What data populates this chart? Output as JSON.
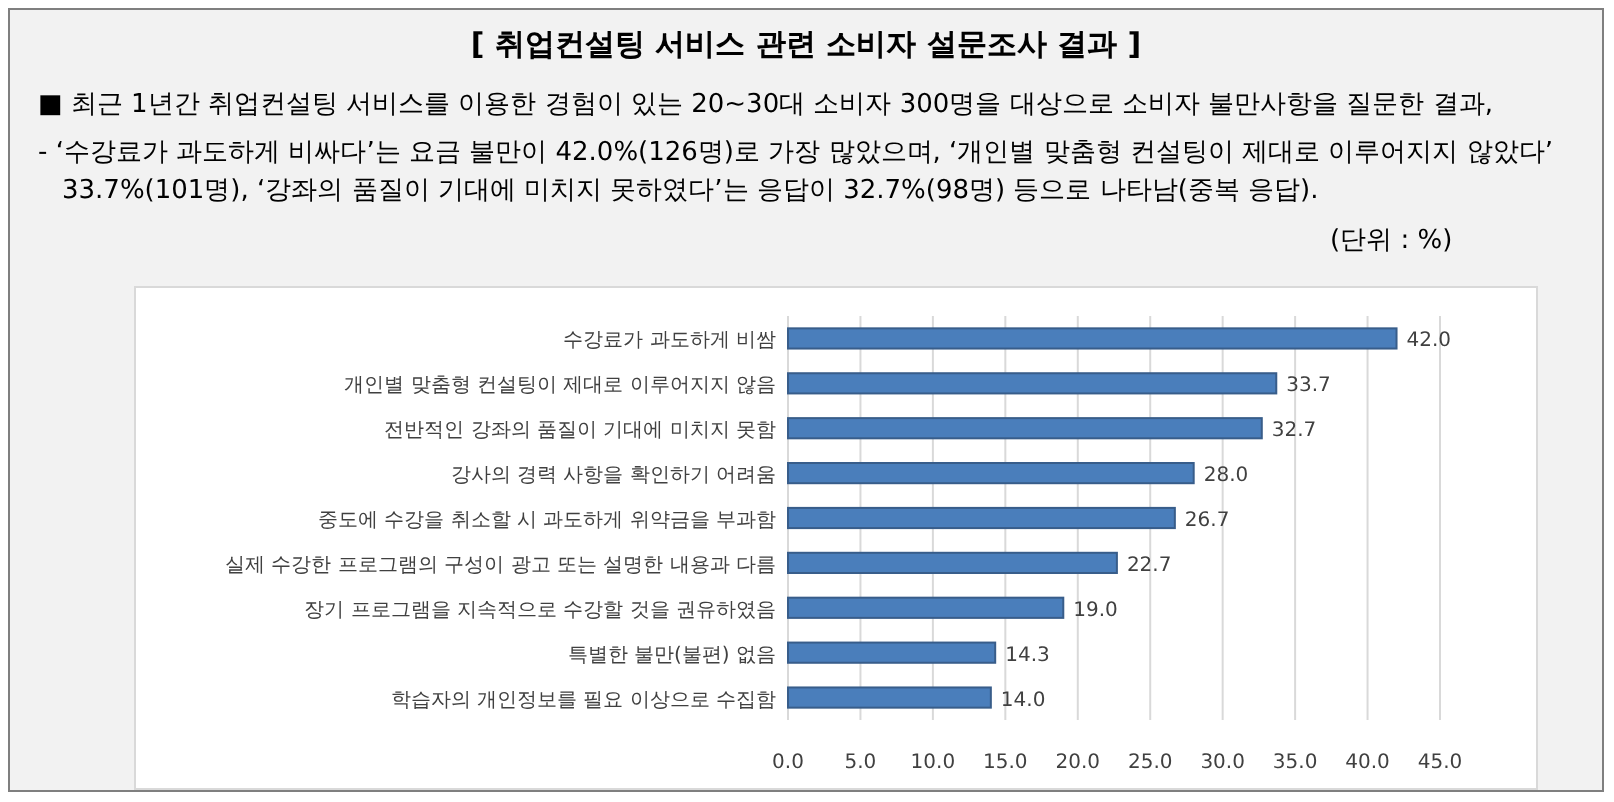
{
  "chart_data": {
    "type": "bar",
    "orientation": "horizontal",
    "title": "[ 취업컨설팅 서비스 관련 소비자 설문조사 결과 ]",
    "annotations": [
      "■  최근 1년간 취업컨설팅 서비스를 이용한 경험이 있는 20~30대 소비자 300명을 대상으로 소비자 불만사항을 질문한 결과,",
      "- ‘수강료가 과도하게 비싸다’는 요금 불만이 42.0%(126명)로 가장 많았으며, ‘개인별 맞춤형 컨설팅이 제대로 이루어지지 않았다’ 33.7%(101명), ‘강좌의 품질이 기대에 미치지 못하였다’는 응답이 32.7%(98명) 등으로 나타남(중복 응답).",
      "(단위 : %)"
    ],
    "categories": [
      "수강료가 과도하게 비쌈",
      "개인별 맞춤형 컨설팅이 제대로 이루어지지 않음",
      "전반적인 강좌의 품질이 기대에 미치지 못함",
      "강사의 경력 사항을 확인하기 어려움",
      "중도에 수강을 취소할 시 과도하게 위약금을 부과함",
      "실제 수강한 프로그램의 구성이 광고 또는 설명한 내용과 다름",
      "장기 프로그램을 지속적으로 수강할 것을 권유하였음",
      "특별한 불만(불편) 없음",
      "학습자의 개인정보를 필요 이상으로 수집함"
    ],
    "values": [
      42.0,
      33.7,
      32.7,
      28.0,
      26.7,
      22.7,
      19.0,
      14.3,
      14.0
    ],
    "value_labels": [
      "42.0",
      "33.7",
      "32.7",
      "28.0",
      "26.7",
      "22.7",
      "19.0",
      "14.3",
      "14.0"
    ],
    "color": "#4a7ebb",
    "xlim": [
      0,
      45
    ],
    "xticks": [
      {
        "value": 0,
        "label": "0.0"
      },
      {
        "value": 5,
        "label": "5.0"
      },
      {
        "value": 10,
        "label": "10.0"
      },
      {
        "value": 15,
        "label": "15.0"
      },
      {
        "value": 20,
        "label": "20.0"
      },
      {
        "value": 25,
        "label": "25.0"
      },
      {
        "value": 30,
        "label": "30.0"
      },
      {
        "value": 35,
        "label": "35.0"
      },
      {
        "value": 40,
        "label": "40.0"
      },
      {
        "value": 45,
        "label": "45.0"
      }
    ],
    "grid": "x"
  }
}
